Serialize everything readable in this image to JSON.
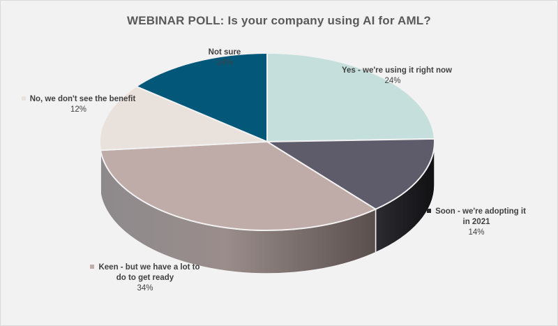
{
  "chart_data": {
    "type": "pie",
    "title": "WEBINAR POLL: Is your company using AI for AML?",
    "slices": [
      {
        "label": "Yes - we're using it right now",
        "value": 24,
        "value_label": "24%",
        "color": "#c5e0dc",
        "side_color": "#8fb8b2"
      },
      {
        "label": "Soon - we're adopting it in 2021",
        "value": 14,
        "value_label": "14%",
        "color": "#5e5b6a",
        "side_color": "#26262b"
      },
      {
        "label": "Keen - but we have a lot to do to get ready",
        "value": 34,
        "value_label": "34%",
        "color": "#bfaba8",
        "side_color": "#7d6d6b"
      },
      {
        "label": "No, we don't see the benefit",
        "value": 12,
        "value_label": "12%",
        "color": "#e9e1dc",
        "side_color": "#b8aba4"
      },
      {
        "label": "Not sure",
        "value": 14,
        "value_label": "14%",
        "color": "#03587a",
        "side_color": "#023d55"
      }
    ]
  }
}
